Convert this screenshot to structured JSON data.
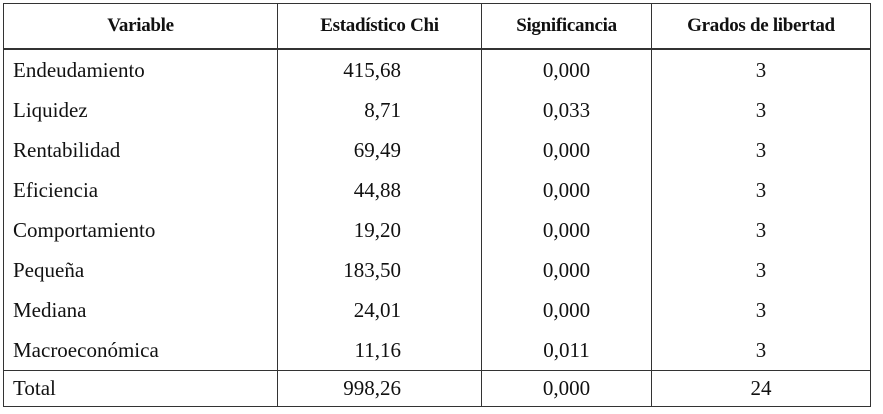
{
  "table": {
    "header": [
      "Variable",
      "Estadístico Chi",
      "Significancia",
      "Grados de libertad"
    ],
    "rows": [
      [
        "Endeudamiento",
        "415,68",
        "0,000",
        "3"
      ],
      [
        "Liquidez",
        "8,71",
        "0,033",
        "3"
      ],
      [
        "Rentabilidad",
        "69,49",
        "0,000",
        "3"
      ],
      [
        "Eficiencia",
        "44,88",
        "0,000",
        "3"
      ],
      [
        "Comportamiento",
        "19,20",
        "0,000",
        "3"
      ],
      [
        "Pequeña",
        "183,50",
        "0,000",
        "3"
      ],
      [
        "Mediana",
        "24,01",
        "0,000",
        "3"
      ],
      [
        "Macroeconómica",
        "11,16",
        "0,011",
        "3"
      ]
    ],
    "total": [
      "Total",
      "998,26",
      "0,000",
      "24"
    ]
  }
}
